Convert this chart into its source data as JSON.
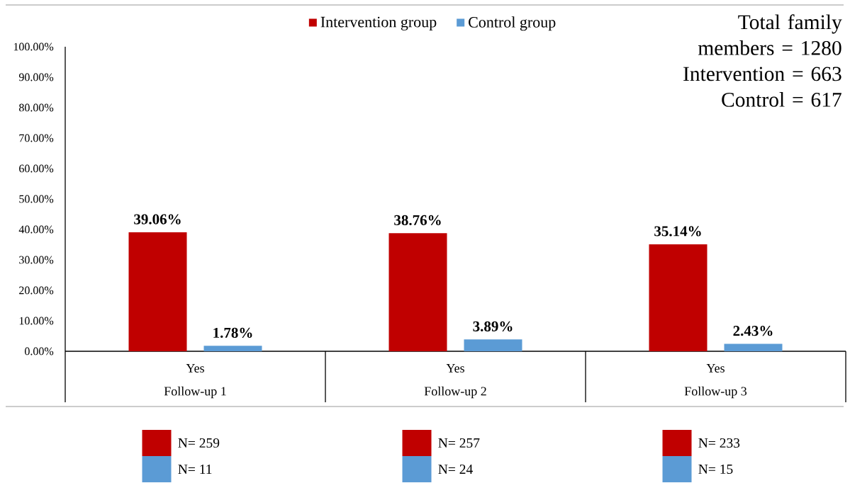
{
  "chart_data": {
    "type": "bar",
    "categories": [
      "Follow-up 1",
      "Follow-up 2",
      "Follow-up 3"
    ],
    "series": [
      {
        "name": "Intervention group",
        "color": "#c00000",
        "values": [
          39.06,
          38.76,
          35.14
        ],
        "value_labels": [
          "39.06%",
          "38.76%",
          "35.14%"
        ]
      },
      {
        "name": "Control group",
        "color": "#5b9bd5",
        "values": [
          1.78,
          3.89,
          2.43
        ],
        "value_labels": [
          "1.78%",
          "3.89%",
          "2.43%"
        ]
      }
    ],
    "ylim": [
      0,
      100
    ],
    "yticks": [
      {
        "value": 0,
        "label": "0.00%"
      },
      {
        "value": 10,
        "label": "10.00%"
      },
      {
        "value": 20,
        "label": "20.00%"
      },
      {
        "value": 30,
        "label": "30.00%"
      },
      {
        "value": 40,
        "label": "40.00%"
      },
      {
        "value": 50,
        "label": "50.00%"
      },
      {
        "value": 60,
        "label": "60.00%"
      },
      {
        "value": 70,
        "label": "70.00%"
      },
      {
        "value": 80,
        "label": "80.00%"
      },
      {
        "value": 90,
        "label": "90.00%"
      },
      {
        "value": 100,
        "label": "100.00%"
      }
    ],
    "legend": "top",
    "annotations": [
      "Total family members = 1280",
      "Intervention = 663",
      "Control = 617",
      "Yes",
      "Yes",
      "Yes",
      "N= 259",
      "N= 11",
      "N= 257",
      "N= 24",
      "N= 233",
      "N= 15"
    ]
  }
}
